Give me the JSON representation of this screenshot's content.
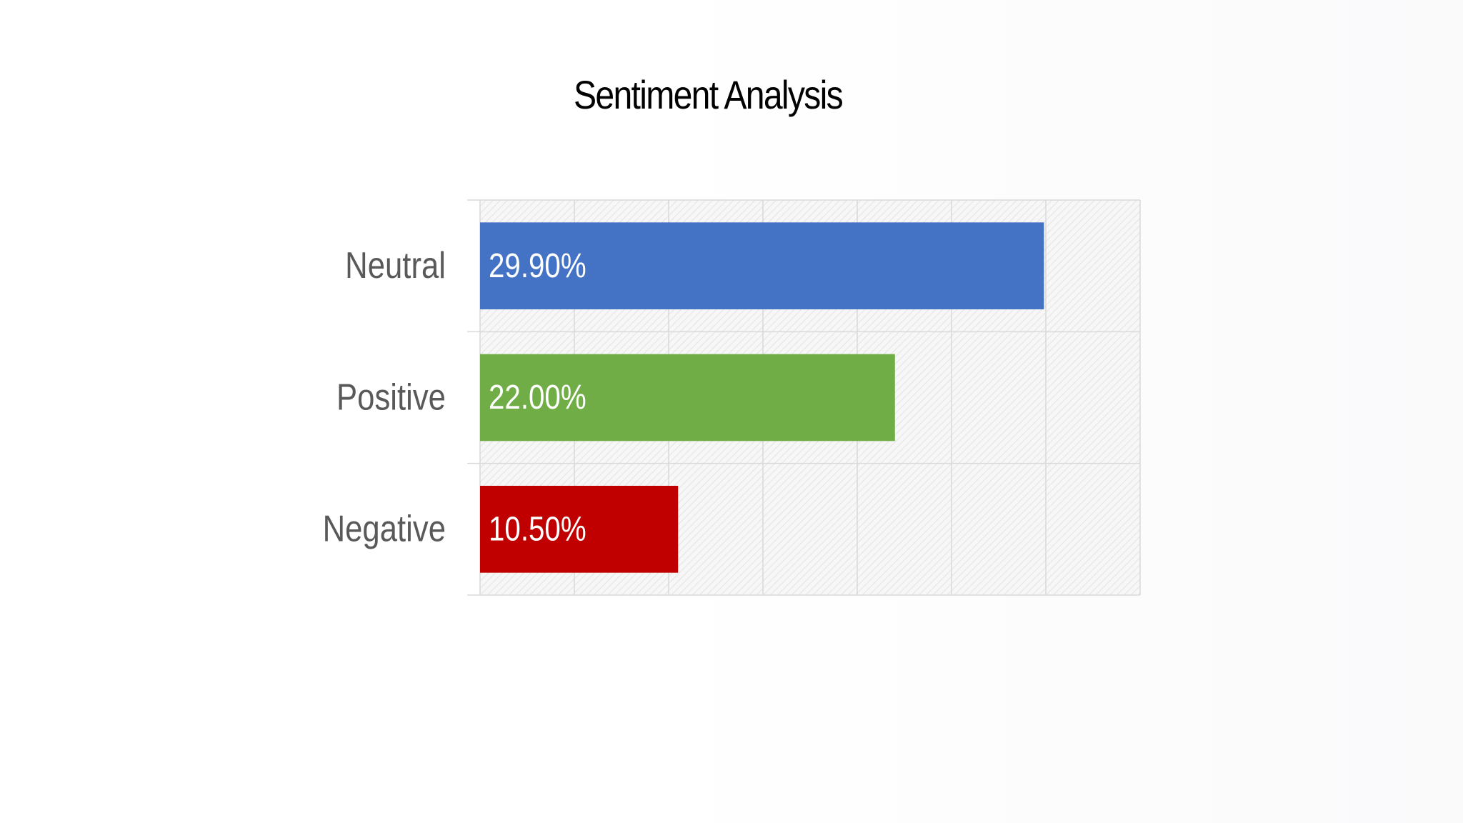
{
  "chart_data": {
    "type": "bar",
    "orientation": "horizontal",
    "title": "Sentiment Analysis",
    "categories": [
      "Neutral",
      "Positive",
      "Negative"
    ],
    "values": [
      29.9,
      22.0,
      10.5
    ],
    "data_labels": [
      "29.90%",
      "22.00%",
      "10.50%"
    ],
    "colors": [
      "#4472c4",
      "#70ad47",
      "#c00000"
    ],
    "xlim": [
      0,
      35
    ],
    "x_grid_step": 5,
    "grid": true,
    "plot_background": "diagonal-hatch",
    "legend": "none",
    "xlabel": "",
    "ylabel": ""
  }
}
